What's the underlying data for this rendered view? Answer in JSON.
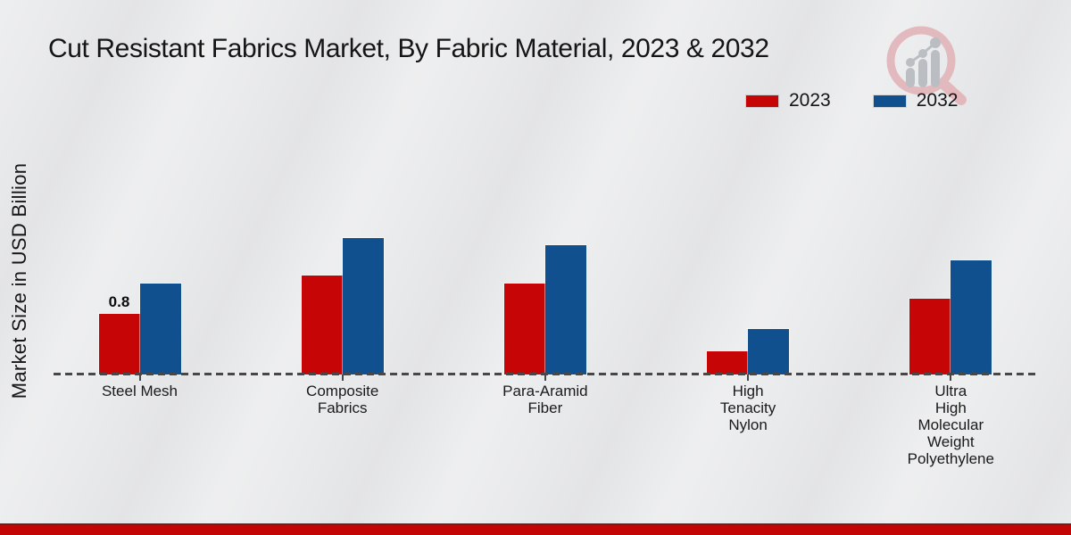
{
  "title": "Cut Resistant Fabrics Market, By Fabric Material, 2023 & 2032",
  "ylabel": "Market Size in USD Billion",
  "legend": [
    {
      "label": "2023",
      "color": "#c60606"
    },
    {
      "label": "2032",
      "color": "#11508f"
    }
  ],
  "footer": {
    "bar_color": "#c30505"
  },
  "icons": {
    "logo": "magnifier-bar-chart-logo"
  },
  "chart_data": {
    "type": "bar",
    "title": "Cut Resistant Fabrics Market, By Fabric Material, 2023 & 2032",
    "xlabel": "",
    "ylabel": "Market Size in USD Billion",
    "categories": [
      "Steel Mesh",
      "Composite Fabrics",
      "Para-Aramid Fiber",
      "High Tenacity Nylon",
      "Ultra High Molecular Weight Polyethylene"
    ],
    "category_label_lines": [
      [
        "Steel Mesh"
      ],
      [
        "Composite",
        "Fabrics"
      ],
      [
        "Para-Aramid",
        "Fiber"
      ],
      [
        "High",
        "Tenacity",
        "Nylon"
      ],
      [
        "Ultra",
        "High",
        "Molecular",
        "Weight",
        "Polyethylene"
      ]
    ],
    "series": [
      {
        "name": "2023",
        "color": "#c60606",
        "values": [
          0.8,
          1.3,
          1.2,
          0.3,
          1.0
        ]
      },
      {
        "name": "2032",
        "color": "#11508f",
        "values": [
          1.2,
          1.8,
          1.7,
          0.6,
          1.5
        ]
      }
    ],
    "bar_labels": [
      {
        "series": "2023",
        "category": "Steel Mesh",
        "text": "0.8"
      }
    ],
    "ylim": [
      0,
      2
    ],
    "grid": false,
    "legend_position": "top-right",
    "baseline": "dashed"
  }
}
